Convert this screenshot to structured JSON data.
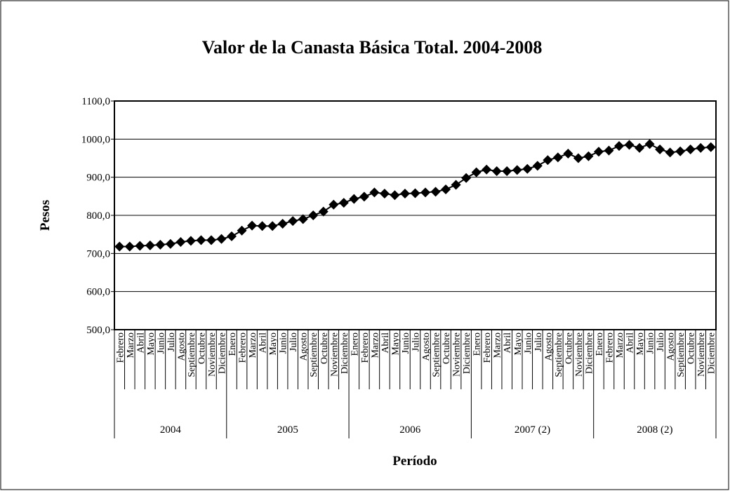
{
  "chart_data": {
    "type": "line",
    "title": "Valor de la Canasta Básica Total. 2004-2008",
    "y_label": "Pesos",
    "x_label": "Período",
    "category_groups": [
      "2004",
      "2005",
      "2006",
      "2007 (2)",
      "2008 (2)"
    ],
    "categories": [
      [
        "Febrero",
        "Marzo",
        "Abril",
        "Mayo",
        "Junio",
        "Julio",
        "Agosto",
        "Septiembre",
        "Octubre",
        "Noviembre",
        "Diciembre"
      ],
      [
        "Enero",
        "Febrero",
        "Marzo",
        "Abril",
        "Mayo",
        "Junio",
        "Julio",
        "Agosto",
        "Septiembre",
        "Octubre",
        "Noviembre",
        "Diciembre"
      ],
      [
        "Enero",
        "Febrero",
        "Marzo",
        "Abril",
        "Mayo",
        "Junio",
        "Julio",
        "Agosto",
        "Septiembre",
        "Octubre",
        "Noviembre",
        "Diciembre"
      ],
      [
        "Enero",
        "Febrero",
        "Marzo",
        "Abril",
        "Mayo",
        "Junio",
        "Julio",
        "Agosto",
        "Septiembre",
        "Octubre",
        "Noviembre",
        "Diciembre"
      ],
      [
        "Enero",
        "Febrero",
        "Marzo",
        "Abril",
        "Mayo",
        "Junio",
        "Julio",
        "Agosto",
        "Septiembre",
        "Octubre",
        "Noviembre",
        "Diciembre"
      ]
    ],
    "values": [
      [
        718,
        718,
        720,
        721,
        723,
        725,
        730,
        733,
        735,
        735,
        738
      ],
      [
        745,
        760,
        773,
        772,
        772,
        778,
        785,
        790,
        800,
        810,
        828,
        833
      ],
      [
        843,
        849,
        860,
        857,
        853,
        857,
        858,
        860,
        862,
        868,
        880,
        898
      ],
      [
        913,
        920,
        916,
        916,
        919,
        922,
        930,
        945,
        952,
        962,
        950,
        955
      ],
      [
        967,
        970,
        982,
        985,
        977,
        987,
        973,
        965,
        968,
        973,
        977,
        979
      ]
    ],
    "color": "#000000",
    "marker": "diamond",
    "ylim": [
      500,
      1100
    ],
    "yticks": [
      {
        "value": 500,
        "label": "500,0"
      },
      {
        "value": 600,
        "label": "600,0"
      },
      {
        "value": 700,
        "label": "700,0"
      },
      {
        "value": 800,
        "label": "800,0"
      },
      {
        "value": 900,
        "label": "900,0"
      },
      {
        "value": 1000,
        "label": "1000,0"
      },
      {
        "value": 1100,
        "label": "1100,0"
      }
    ],
    "grid": true
  }
}
